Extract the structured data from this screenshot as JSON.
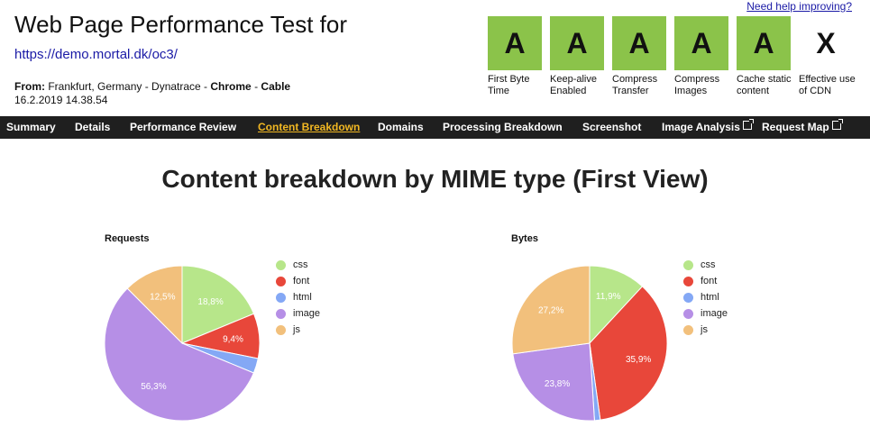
{
  "header": {
    "title": "Web Page Performance Test for",
    "url": "https://demo.mortal.dk/oc3/",
    "from_label": "From:",
    "from_location": "Frankfurt, Germany - Dynatrace - ",
    "browser": "Chrome",
    "separator": " - ",
    "connection": "Cable",
    "date": "16.2.2019 14.38.54",
    "help_link": "Need help improving?"
  },
  "grades": [
    {
      "grade": "A",
      "label": "First Byte Time",
      "status": "pass"
    },
    {
      "grade": "A",
      "label": "Keep-alive Enabled",
      "status": "pass"
    },
    {
      "grade": "A",
      "label": "Compress Transfer",
      "status": "pass"
    },
    {
      "grade": "A",
      "label": "Compress Images",
      "status": "pass"
    },
    {
      "grade": "A",
      "label": "Cache static content",
      "status": "pass"
    },
    {
      "grade": "X",
      "label": "Effective use of CDN",
      "status": "na"
    }
  ],
  "nav": {
    "items": [
      {
        "label": "Summary"
      },
      {
        "label": "Details"
      },
      {
        "label": "Performance Review"
      },
      {
        "label": "Content Breakdown",
        "active": true
      },
      {
        "label": "Domains"
      },
      {
        "label": "Processing Breakdown"
      },
      {
        "label": "Screenshot"
      },
      {
        "label": "Image Analysis",
        "external": true
      },
      {
        "label": "Request Map",
        "external": true
      }
    ]
  },
  "page": {
    "heading": "Content breakdown by MIME type (First View)"
  },
  "colors": {
    "css": "#b7e68a",
    "font": "#e8473a",
    "html": "#84a8f5",
    "image": "#b68fe6",
    "js": "#f2c07c",
    "grade_pass": "#8bc34a",
    "nav_bg": "#1f1f1f",
    "nav_active": "#f1b722"
  },
  "chart_data": [
    {
      "type": "pie",
      "title": "Requests",
      "categories": [
        "css",
        "font",
        "html",
        "image",
        "js"
      ],
      "values": [
        18.8,
        9.4,
        3.1,
        56.3,
        12.5
      ],
      "labels": [
        "18,8%",
        "9,4%",
        "",
        "56,3%",
        "12,5%"
      ],
      "legend": "right"
    },
    {
      "type": "pie",
      "title": "Bytes",
      "categories": [
        "css",
        "font",
        "html",
        "image",
        "js"
      ],
      "values": [
        11.9,
        35.9,
        1.2,
        23.8,
        27.2
      ],
      "labels": [
        "11,9%",
        "35,9%",
        "",
        "23,8%",
        "27,2%"
      ],
      "legend": "right"
    }
  ]
}
